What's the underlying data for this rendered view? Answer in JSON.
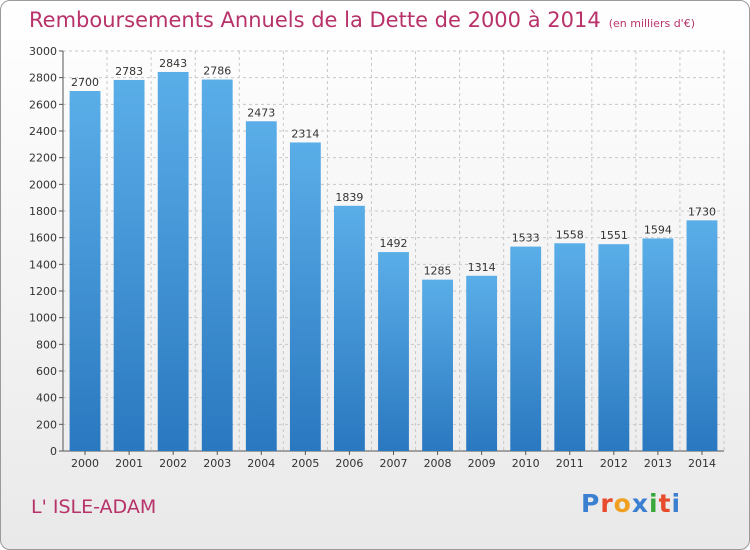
{
  "title": "Remboursements Annuels de la Dette de 2000 à 2014",
  "subtitle": "(en milliers d'€)",
  "town": "L' ISLE-ADAM",
  "logo": {
    "letters": [
      "P",
      "r",
      "o",
      "x",
      "i",
      "t",
      "i"
    ],
    "colors": [
      "#3b7fd0",
      "#e84a2c",
      "#f0a020",
      "#3b7fd0",
      "#3aa83a",
      "#e84a2c",
      "#3b7fd0"
    ]
  },
  "colors": {
    "bar_top": "#5aaee8",
    "bar_bottom": "#2a78c0",
    "title": "#b8326a",
    "grid": "#c8c8c8"
  },
  "chart_data": {
    "type": "bar",
    "title": "Remboursements Annuels de la Dette de 2000 à 2014",
    "xlabel": "",
    "ylabel": "",
    "ylim": [
      0,
      3000
    ],
    "ytick_step": 200,
    "grid": true,
    "categories": [
      "2000",
      "2001",
      "2002",
      "2003",
      "2004",
      "2005",
      "2006",
      "2007",
      "2008",
      "2009",
      "2010",
      "2011",
      "2012",
      "2013",
      "2014"
    ],
    "values": [
      2700,
      2783,
      2843,
      2786,
      2473,
      2314,
      1839,
      1492,
      1285,
      1314,
      1533,
      1558,
      1551,
      1594,
      1730
    ]
  }
}
